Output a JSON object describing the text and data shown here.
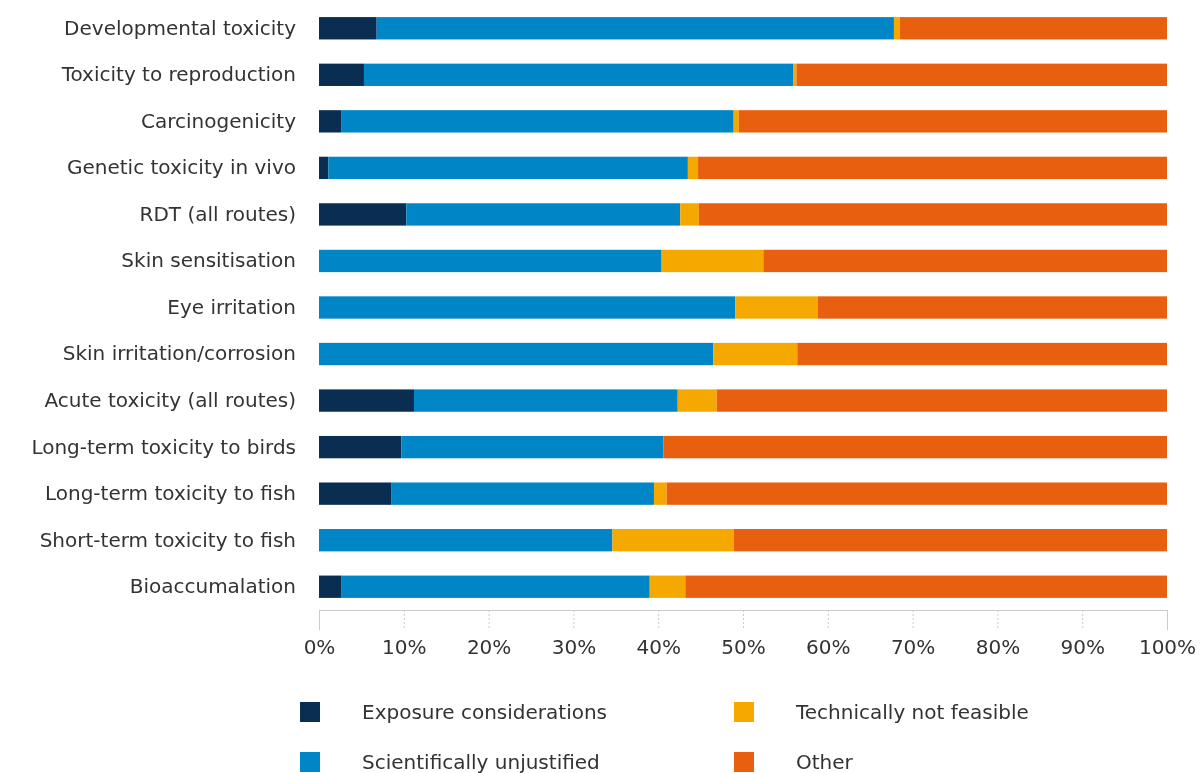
{
  "chart_data": {
    "type": "bar",
    "orientation": "horizontal",
    "stacked": true,
    "legend": "bottom",
    "categories": [
      "Developmental toxicity",
      "Toxicity to reproduction",
      "Carcinogenicity",
      "Genetic toxicity in vivo",
      "RDT (all routes)",
      "Skin sensitisation",
      "Eye irritation",
      "Skin irritation/corrosion",
      "Acute toxicity (all routes)",
      "Long-term toxicity to birds",
      "Long-term toxicity to fish",
      "Short-term toxicity to fish",
      "Bioaccumalation"
    ],
    "xlim": [
      0,
      100
    ],
    "xticks": [
      {
        "value": 0,
        "label": "0%"
      },
      {
        "value": 10,
        "label": "10%"
      },
      {
        "value": 20,
        "label": "20%"
      },
      {
        "value": 30,
        "label": "30%"
      },
      {
        "value": 40,
        "label": "40%"
      },
      {
        "value": 50,
        "label": "50%"
      },
      {
        "value": 60,
        "label": "60%"
      },
      {
        "value": 70,
        "label": "70%"
      },
      {
        "value": 80,
        "label": "80%"
      },
      {
        "value": 90,
        "label": "90%"
      },
      {
        "value": 100,
        "label": "100%"
      }
    ],
    "series": [
      {
        "name": "Exposure considerations",
        "color": "#0a2d52",
        "values": [
          6.8,
          5.3,
          2.6,
          1.1,
          10.3,
          0,
          0,
          0,
          11.2,
          9.7,
          8.5,
          0,
          2.6
        ]
      },
      {
        "name": "Scientifically unjustified",
        "color": "#0086c6",
        "values": [
          61.0,
          50.6,
          46.3,
          42.4,
          32.3,
          40.4,
          49.1,
          46.5,
          31.1,
          30.9,
          31.0,
          34.6,
          36.4
        ]
      },
      {
        "name": "Technically not feasible",
        "color": "#f5a800",
        "values": [
          0.7,
          0.4,
          0.6,
          1.2,
          2.2,
          12.0,
          9.7,
          9.9,
          4.6,
          0,
          1.5,
          14.3,
          4.2
        ]
      },
      {
        "name": "Other",
        "color": "#e8600f",
        "values": [
          31.5,
          43.7,
          50.5,
          55.3,
          55.2,
          47.6,
          41.2,
          43.6,
          53.1,
          59.4,
          59.0,
          51.1,
          56.8
        ]
      }
    ]
  }
}
